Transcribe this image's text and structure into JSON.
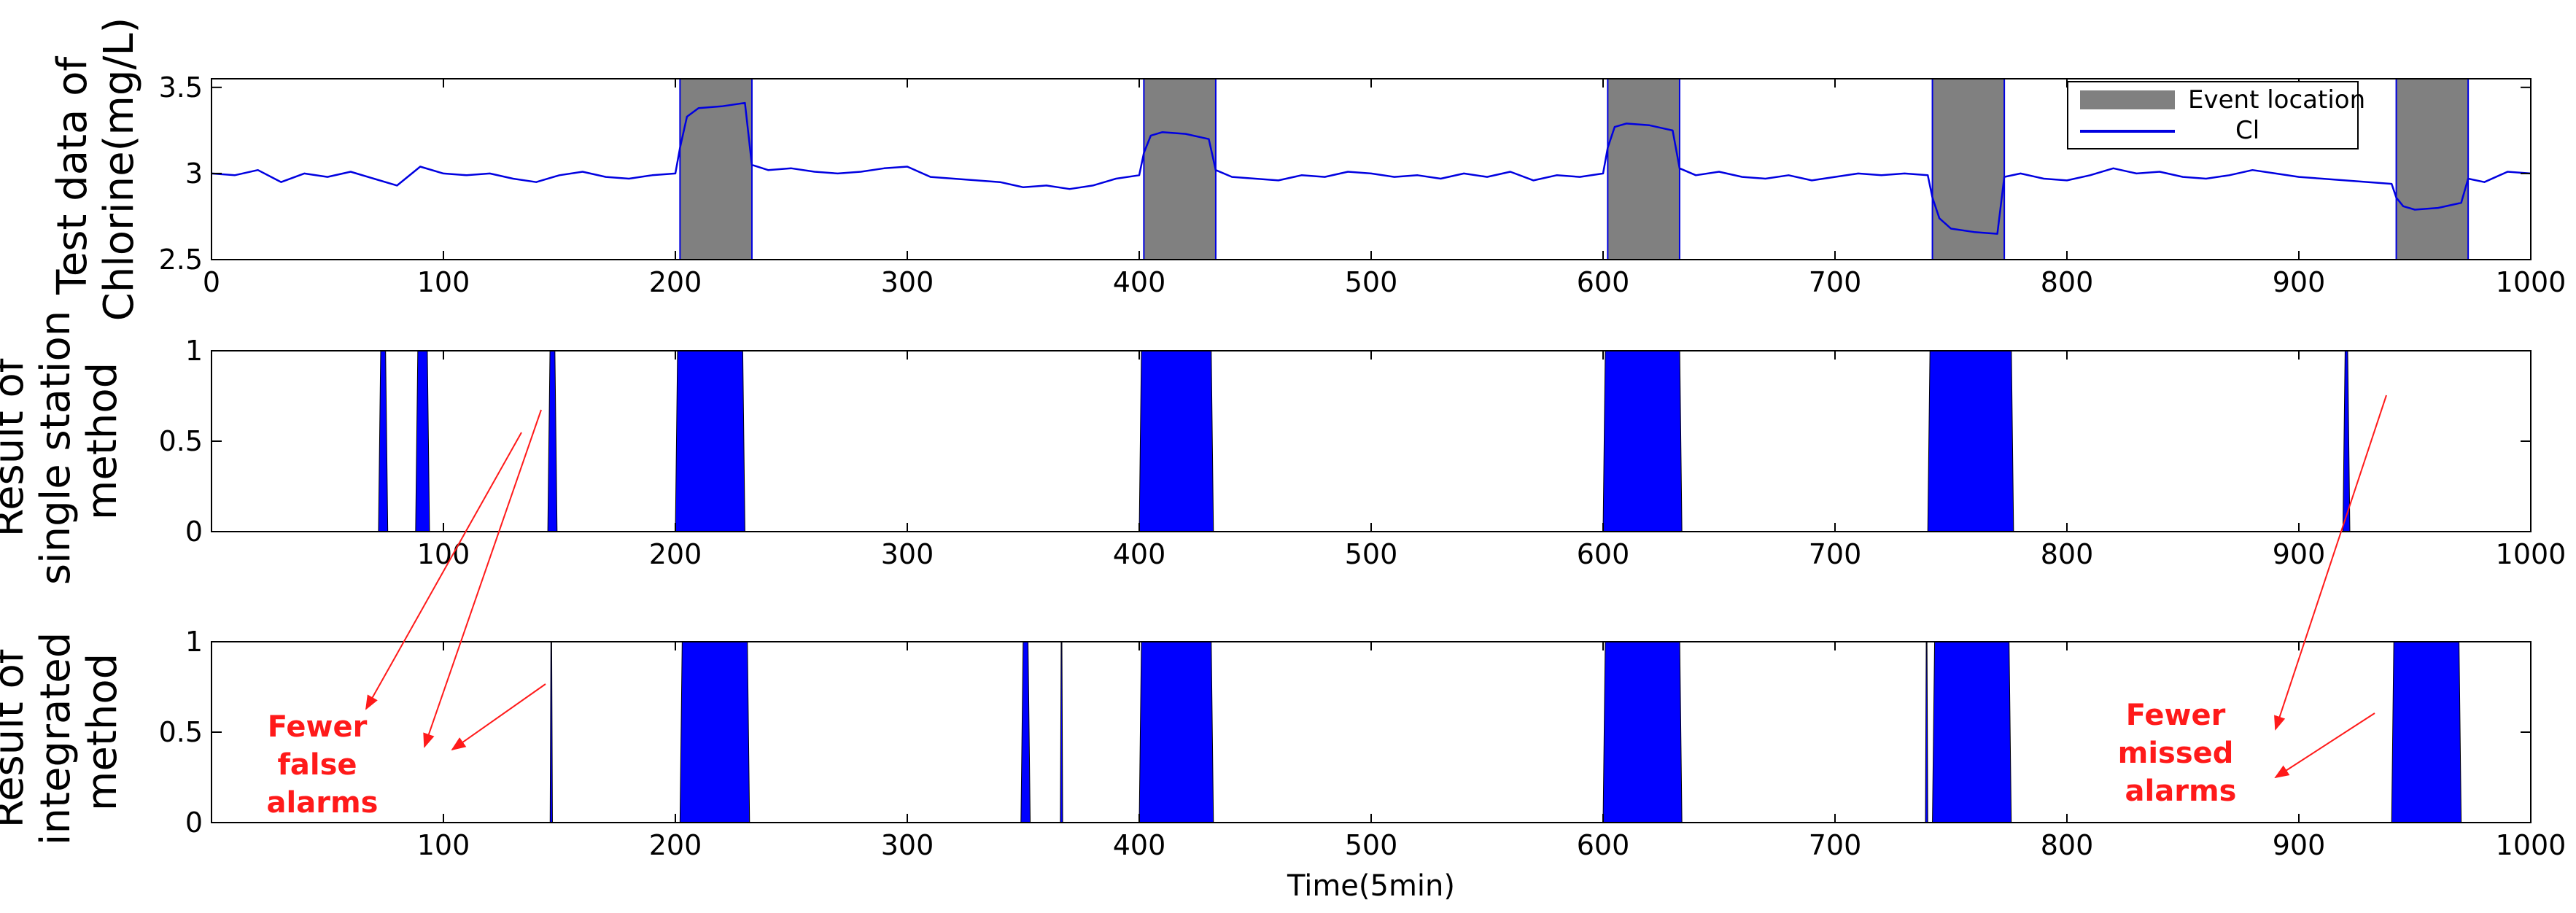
{
  "chart_data": [
    {
      "type": "line",
      "panel": "top",
      "ylabel_lines": [
        "Test data of",
        "Chlorine(mg/L)"
      ],
      "xlim": [
        0,
        1000
      ],
      "ylim": [
        2.5,
        3.55
      ],
      "xticks": [
        "0",
        "100",
        "200",
        "300",
        "400",
        "500",
        "600",
        "700",
        "800",
        "900",
        "1000"
      ],
      "yticks": [
        "2.5",
        "3",
        "3.5"
      ],
      "legend_placement": "top-right",
      "event_windows": [
        [
          202,
          233
        ],
        [
          402,
          433
        ],
        [
          602,
          633
        ],
        [
          742,
          773
        ],
        [
          942,
          973
        ]
      ],
      "colors": {
        "event": "#808080",
        "line": "#0000e0"
      },
      "series": [
        {
          "name": "Event location"
        },
        {
          "name": "Cl",
          "x": [
            0,
            10,
            20,
            30,
            40,
            50,
            60,
            70,
            80,
            90,
            100,
            110,
            120,
            130,
            140,
            150,
            160,
            170,
            180,
            190,
            200,
            202,
            205,
            210,
            220,
            230,
            233,
            240,
            250,
            260,
            270,
            280,
            290,
            300,
            310,
            320,
            330,
            340,
            350,
            360,
            370,
            380,
            390,
            400,
            402,
            405,
            410,
            420,
            430,
            433,
            440,
            450,
            460,
            470,
            480,
            490,
            500,
            510,
            520,
            530,
            540,
            550,
            560,
            570,
            580,
            590,
            600,
            602,
            605,
            610,
            620,
            630,
            633,
            640,
            650,
            660,
            670,
            680,
            690,
            700,
            710,
            720,
            730,
            740,
            742,
            745,
            750,
            760,
            770,
            773,
            780,
            790,
            800,
            810,
            820,
            830,
            840,
            850,
            860,
            870,
            880,
            890,
            900,
            910,
            920,
            930,
            940,
            942,
            945,
            950,
            960,
            970,
            973,
            980,
            990,
            1000
          ],
          "y": [
            3.0,
            2.99,
            3.02,
            2.95,
            3.0,
            2.98,
            3.01,
            2.97,
            2.93,
            3.04,
            3.0,
            2.99,
            3.0,
            2.97,
            2.95,
            2.99,
            3.01,
            2.98,
            2.97,
            2.99,
            3.0,
            3.15,
            3.33,
            3.38,
            3.39,
            3.41,
            3.05,
            3.02,
            3.03,
            3.01,
            3.0,
            3.01,
            3.03,
            3.04,
            2.98,
            2.97,
            2.96,
            2.95,
            2.92,
            2.93,
            2.91,
            2.93,
            2.97,
            2.99,
            3.12,
            3.22,
            3.24,
            3.23,
            3.2,
            3.02,
            2.98,
            2.97,
            2.96,
            2.99,
            2.98,
            3.01,
            3.0,
            2.98,
            2.99,
            2.97,
            3.0,
            2.98,
            3.01,
            2.96,
            2.99,
            2.98,
            3.0,
            3.15,
            3.27,
            3.29,
            3.28,
            3.25,
            3.03,
            2.99,
            3.01,
            2.98,
            2.97,
            2.99,
            2.96,
            2.98,
            3.0,
            2.99,
            3.0,
            2.99,
            2.86,
            2.74,
            2.68,
            2.66,
            2.65,
            2.98,
            3.0,
            2.97,
            2.96,
            2.99,
            3.03,
            3.0,
            3.01,
            2.98,
            2.97,
            2.99,
            3.02,
            3.0,
            2.98,
            2.97,
            2.96,
            2.95,
            2.94,
            2.86,
            2.81,
            2.79,
            2.8,
            2.83,
            2.97,
            2.95,
            3.01,
            3.0
          ]
        }
      ]
    },
    {
      "type": "area",
      "panel": "middle",
      "ylabel_lines": [
        "Result of",
        "single station",
        "method"
      ],
      "xlim": [
        0,
        1000
      ],
      "ylim": [
        0,
        1
      ],
      "xticks": [
        "100",
        "200",
        "300",
        "400",
        "500",
        "600",
        "700",
        "800",
        "900",
        "1000"
      ],
      "yticks": [
        "0",
        "0.5",
        "1"
      ],
      "alarm_intervals": [
        [
          72,
          76
        ],
        [
          88,
          94
        ],
        [
          145,
          149
        ],
        [
          200,
          230
        ],
        [
          400,
          432
        ],
        [
          600,
          634
        ],
        [
          740,
          777
        ],
        [
          919,
          922
        ]
      ]
    },
    {
      "type": "area",
      "panel": "bottom",
      "ylabel_lines": [
        "Result of",
        "integrated",
        "method"
      ],
      "xlabel": "Time(5min)",
      "xlim": [
        0,
        1000
      ],
      "ylim": [
        0,
        1
      ],
      "xticks": [
        "100",
        "200",
        "300",
        "400",
        "500",
        "600",
        "700",
        "800",
        "900",
        "1000"
      ],
      "yticks": [
        "0",
        "0.5",
        "1"
      ],
      "alarm_intervals": [
        [
          146,
          147
        ],
        [
          202,
          232
        ],
        [
          349,
          353
        ],
        [
          366,
          367
        ],
        [
          400,
          432
        ],
        [
          600,
          634
        ],
        [
          739,
          740
        ],
        [
          742,
          776
        ],
        [
          940,
          970
        ]
      ],
      "annotations": [
        {
          "lines": [
            "Fewer",
            "false",
            "alarms"
          ]
        },
        {
          "lines": [
            "Fewer",
            "missed",
            "alarms"
          ]
        }
      ]
    }
  ]
}
